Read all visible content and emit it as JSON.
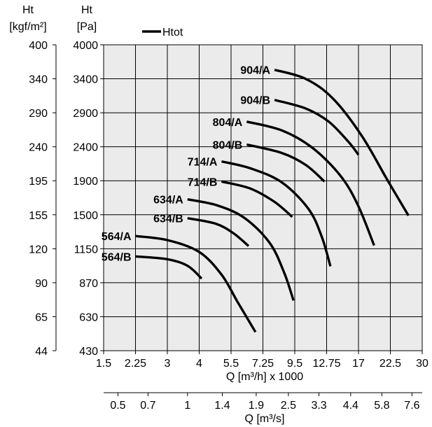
{
  "chart_data": {
    "type": "line",
    "title": "",
    "legend": {
      "label": "Htot",
      "position": "top-left"
    },
    "grid": true,
    "xlabel": "Q [m³/h] x 1000",
    "x2label": "Q [m³/s]",
    "ylabel_left": [
      "Ht",
      "[kgf/m²]"
    ],
    "ylabel_right": [
      "Ht",
      "[Pa]"
    ],
    "x_ticks": [
      "1.5",
      "2.25",
      "3",
      "4",
      "5.5",
      "7.25",
      "9.5",
      "12.75",
      "17",
      "22.5",
      "30"
    ],
    "x2_ticks": [
      "0.5",
      "0.7",
      "1",
      "1.4",
      "1.9",
      "2.5",
      "3.3",
      "4.4",
      "5.8",
      "7.6"
    ],
    "y_ticks_pa": [
      "4000",
      "3400",
      "2900",
      "2400",
      "1900",
      "1500",
      "1150",
      "870",
      "630",
      "430"
    ],
    "y_ticks_kgf": [
      "400",
      "340",
      "290",
      "240",
      "195",
      "155",
      "120",
      "90",
      "65",
      "44"
    ],
    "series": [
      {
        "name": "904/A",
        "x": [
          8.0,
          10.5,
          13.5,
          17.5,
          22.0,
          26.5
        ],
        "y": [
          3550,
          3400,
          3100,
          2550,
          1900,
          1490
        ]
      },
      {
        "name": "904/B",
        "x": [
          8.0,
          10.5,
          13.0,
          15.5,
          17.0
        ],
        "y": [
          3080,
          2960,
          2760,
          2470,
          2270
        ]
      },
      {
        "name": "804/A",
        "x": [
          6.3,
          8.5,
          11.2,
          14.5,
          17.0,
          19.5
        ],
        "y": [
          2760,
          2630,
          2380,
          1960,
          1590,
          1180
        ]
      },
      {
        "name": "804/B",
        "x": [
          6.3,
          8.5,
          10.5,
          12.5
        ],
        "y": [
          2430,
          2300,
          2120,
          1890
        ]
      },
      {
        "name": "714/A",
        "x": [
          5.0,
          6.5,
          8.5,
          10.8,
          12.2,
          13.2
        ],
        "y": [
          2170,
          2070,
          1880,
          1560,
          1260,
          995
        ]
      },
      {
        "name": "714/B",
        "x": [
          5.0,
          6.5,
          8.0,
          9.3
        ],
        "y": [
          1890,
          1800,
          1640,
          1475
        ]
      },
      {
        "name": "634/A",
        "x": [
          3.6,
          4.8,
          6.2,
          7.7,
          8.7,
          9.4
        ],
        "y": [
          1670,
          1600,
          1460,
          1200,
          940,
          735
        ]
      },
      {
        "name": "634/B",
        "x": [
          3.6,
          4.7,
          5.6,
          6.4
        ],
        "y": [
          1460,
          1400,
          1300,
          1175
        ]
      },
      {
        "name": "564/A",
        "x": [
          2.25,
          3.0,
          4.0,
          5.0,
          5.8,
          6.8
        ],
        "y": [
          1270,
          1230,
          1120,
          930,
          730,
          530
        ]
      },
      {
        "name": "564/B",
        "x": [
          2.25,
          3.0,
          3.6,
          4.1
        ],
        "y": [
          1080,
          1055,
          1000,
          900
        ]
      }
    ]
  }
}
